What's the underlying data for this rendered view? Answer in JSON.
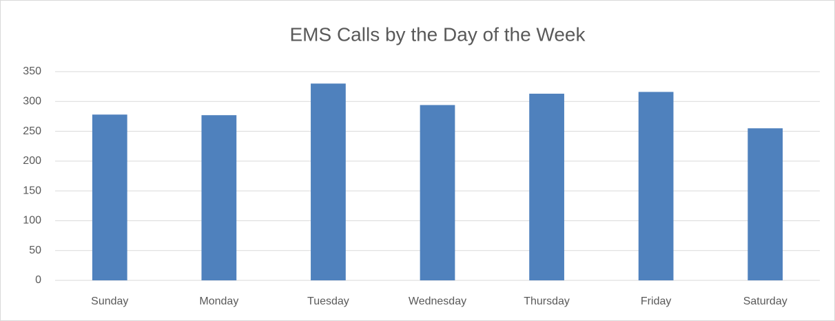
{
  "chart_data": {
    "type": "bar",
    "title": "EMS Calls by the Day of the Week",
    "categories": [
      "Sunday",
      "Monday",
      "Tuesday",
      "Wednesday",
      "Thursday",
      "Friday",
      "Saturday"
    ],
    "values": [
      278,
      277,
      330,
      294,
      313,
      316,
      255
    ],
    "color": "#4f81bd",
    "ylim": [
      0,
      350
    ],
    "yticks": [
      0,
      50,
      100,
      150,
      200,
      250,
      300,
      350
    ],
    "grid": true
  }
}
